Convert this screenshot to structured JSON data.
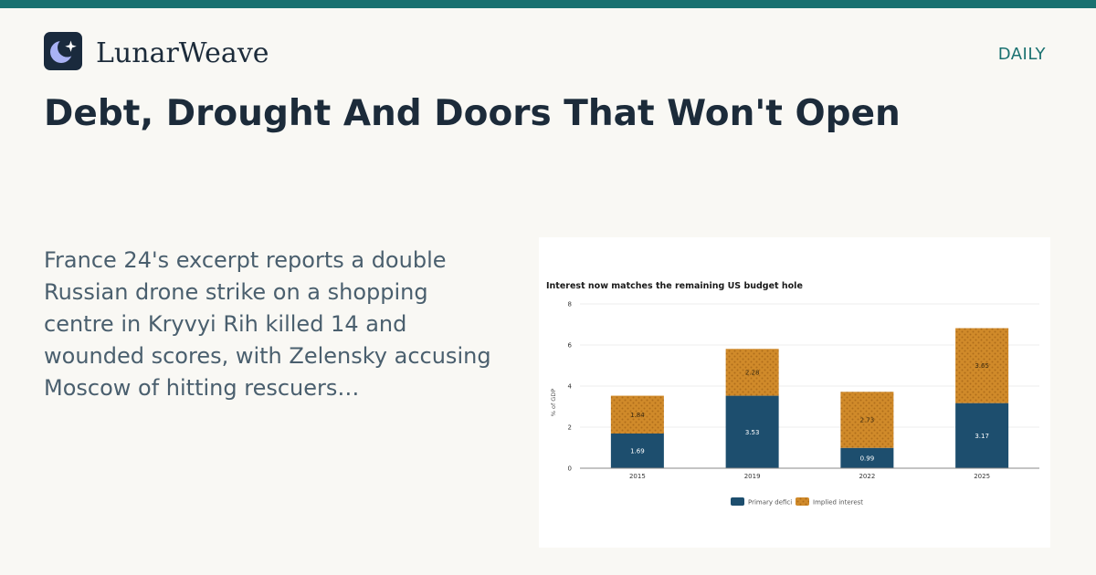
{
  "brand": {
    "name": "LunarWeave",
    "section": "DAILY",
    "icon": "crescent-moon-sparkle-icon",
    "accent": "#1a7170"
  },
  "article": {
    "headline": "Debt, Drought And Doors That Won't Open",
    "summary": "France 24's excerpt reports a double Russian drone strike on a shopping centre in Kryvyi Rih killed 14 and wounded scores, with Zelensky accusing Moscow of hitting rescuers…"
  },
  "chart_data": {
    "type": "bar",
    "stacked": true,
    "title": "Interest now matches the remaining US budget hole",
    "ylabel": "% of GDP",
    "xlabel": "",
    "categories": [
      "2015",
      "2019",
      "2022",
      "2025"
    ],
    "ylim": [
      0,
      8
    ],
    "yticks": [
      "0",
      "2",
      "4",
      "6",
      "8"
    ],
    "series": [
      {
        "name": "Primary deficit",
        "values": [
          1.69,
          3.53,
          0.99,
          3.17
        ],
        "labels": [
          "1.69",
          "3.53",
          "0.99",
          "3.17"
        ],
        "color": "#1d4e6e"
      },
      {
        "name": "Implied interest",
        "values": [
          1.84,
          2.28,
          2.73,
          3.65
        ],
        "labels": [
          "1.84",
          "2.28",
          "2.73",
          "3.65"
        ],
        "color": "#d08a2a",
        "pattern": "dotted"
      }
    ],
    "legend_labels": [
      "Primary defici",
      "Implied interest"
    ],
    "legend": "bottom",
    "grid": true
  }
}
